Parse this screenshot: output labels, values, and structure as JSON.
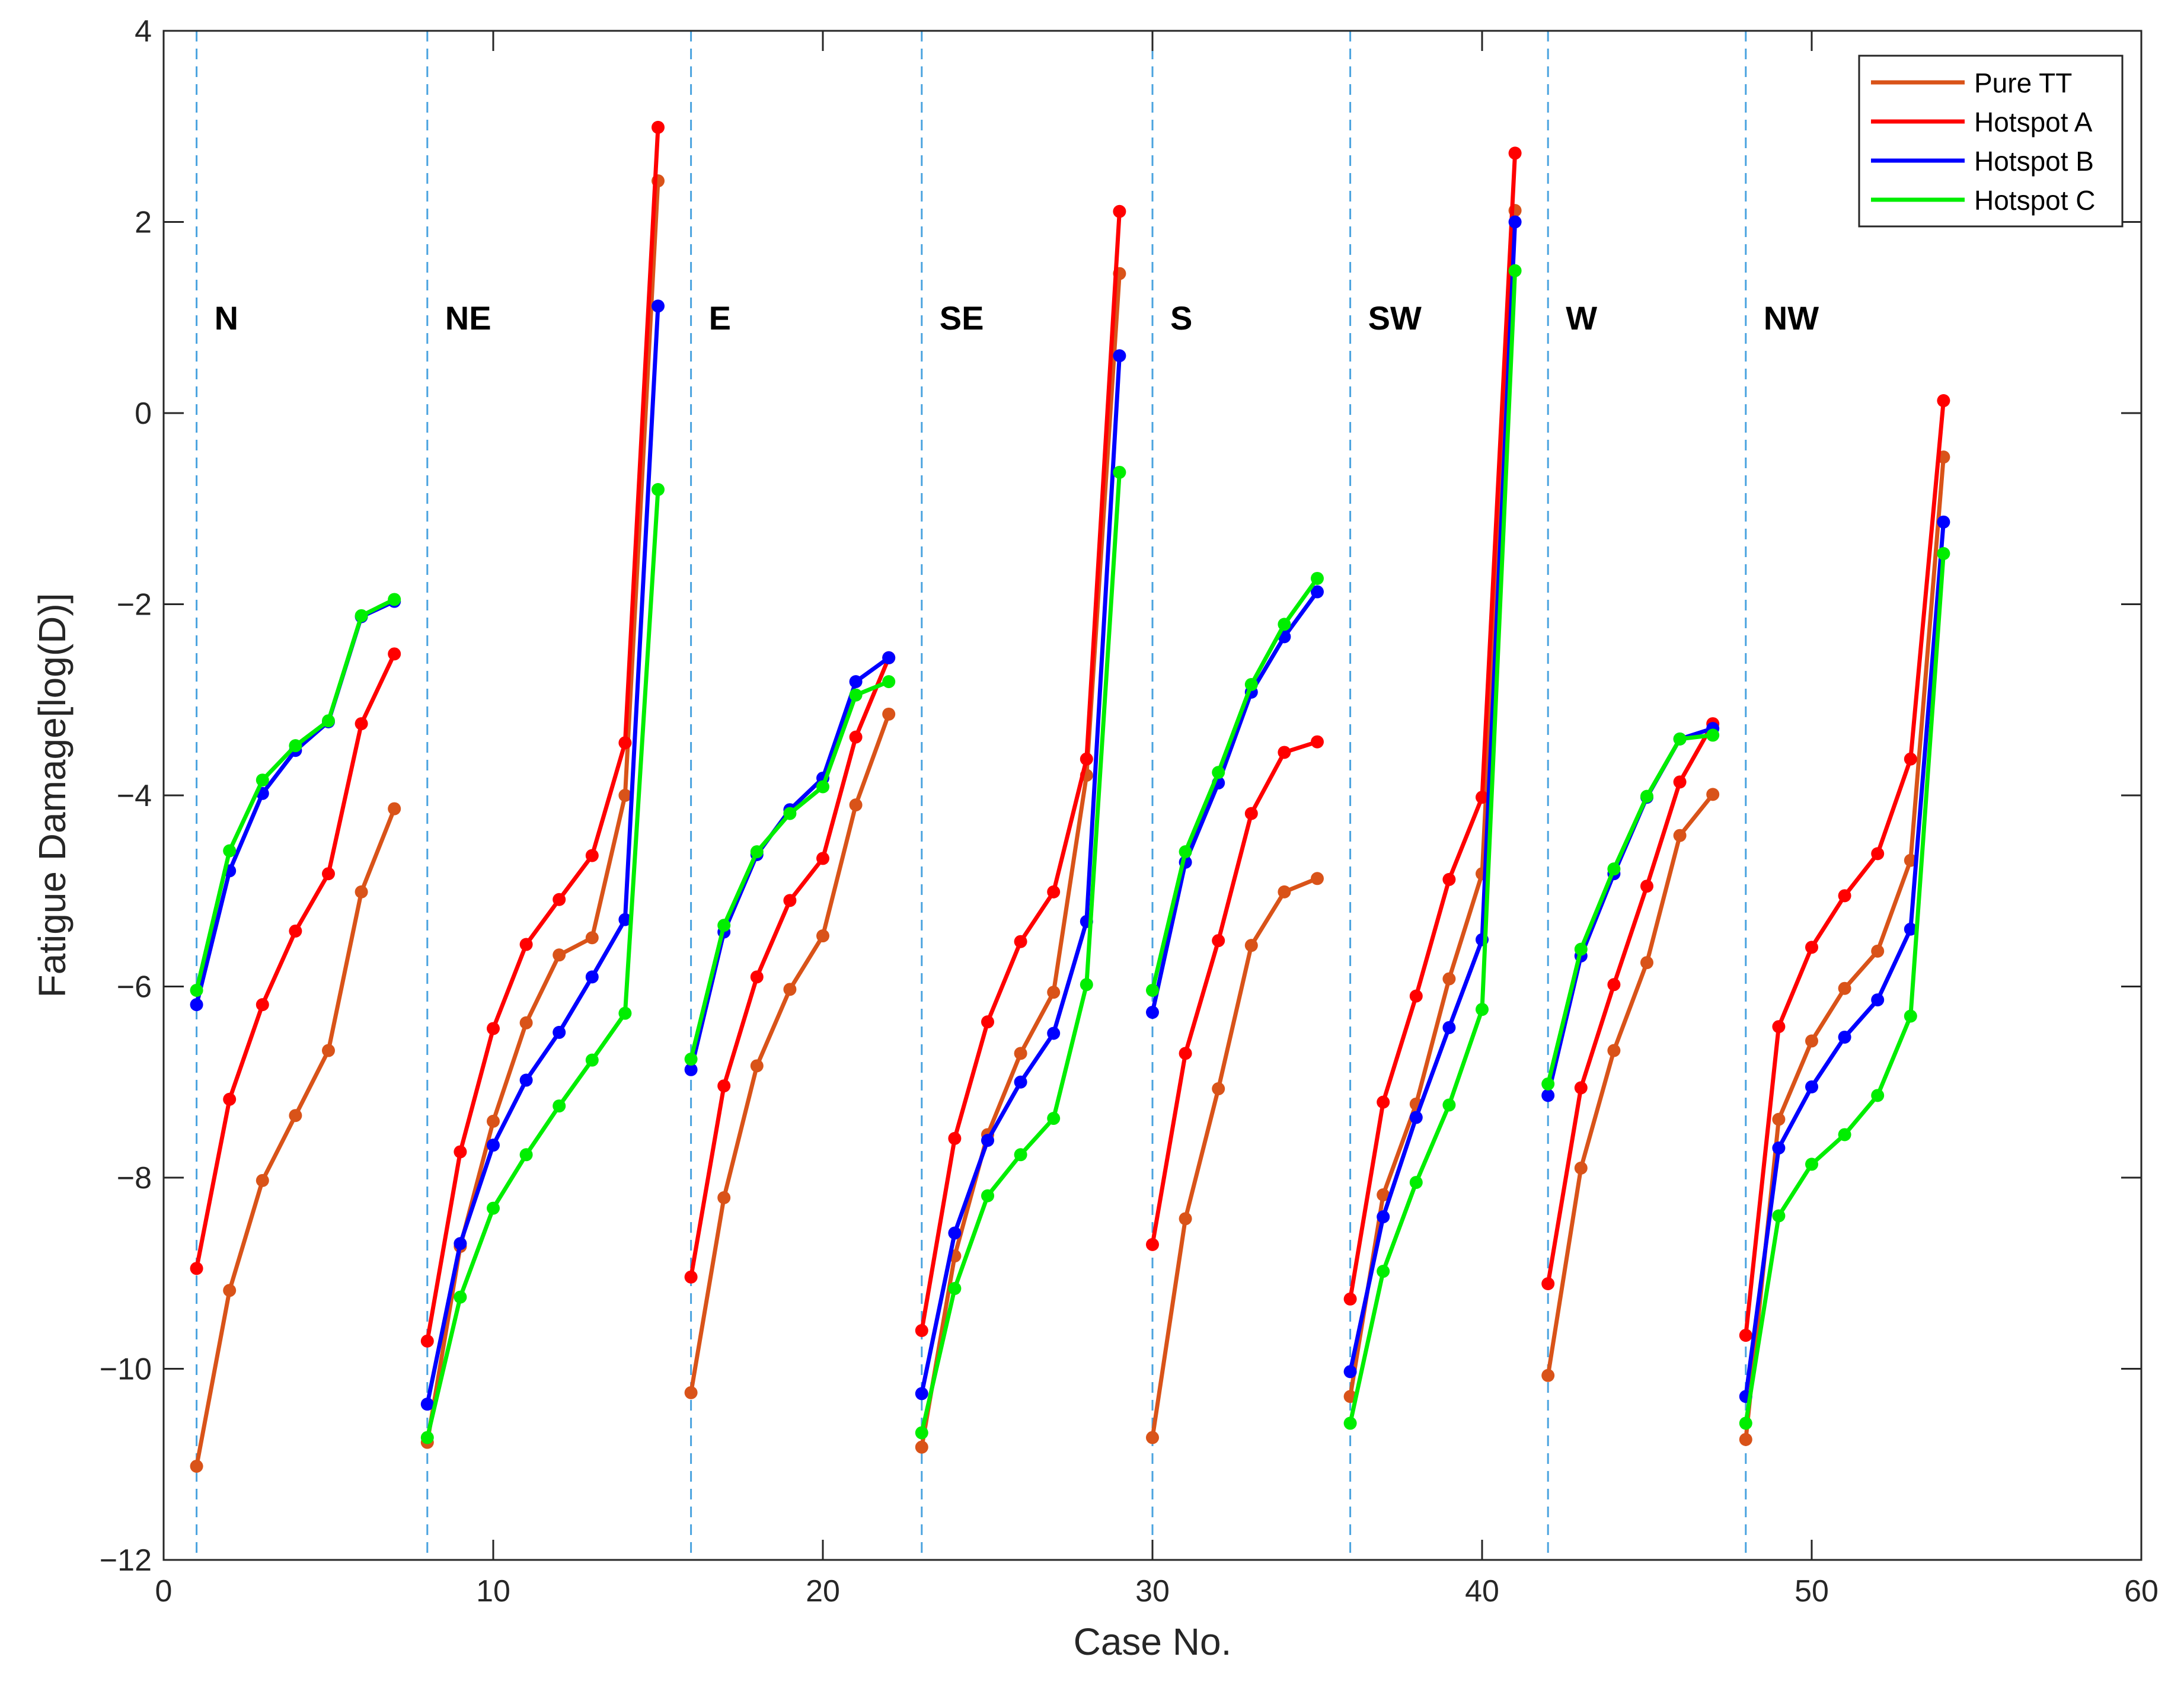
{
  "chart_data": {
    "type": "line",
    "title": "",
    "xlabel": "Case No.",
    "ylabel": "Fatigue Damage[log(D)]",
    "xlim": [
      0,
      60
    ],
    "ylim": [
      -12,
      4
    ],
    "xticks": [
      0,
      10,
      20,
      30,
      40,
      50,
      60
    ],
    "yticks": [
      -12,
      -10,
      -8,
      -6,
      -4,
      -2,
      0,
      2,
      4
    ],
    "grid": false,
    "legend_position": "top-right",
    "dividers": [
      1,
      8,
      16,
      23,
      30,
      36,
      42,
      48
    ],
    "regions": [
      {
        "label": "N",
        "x": 1,
        "y": 1
      },
      {
        "label": "NE",
        "x": 8,
        "y": 1
      },
      {
        "label": "E",
        "x": 16,
        "y": 1
      },
      {
        "label": "SE",
        "x": 23,
        "y": 1
      },
      {
        "label": "S",
        "x": 30,
        "y": 1
      },
      {
        "label": "SW",
        "x": 36,
        "y": 1
      },
      {
        "label": "W",
        "x": 42,
        "y": 1
      },
      {
        "label": "NW",
        "x": 48,
        "y": 1
      }
    ],
    "series": [
      {
        "name": "Pure TT",
        "color": "#d95319",
        "segments": [
          {
            "x": [
              1,
              2,
              3,
              4,
              5,
              6,
              7
            ],
            "y": [
              -11.02,
              -9.18,
              -8.03,
              -7.35,
              -6.67,
              -5.01,
              -4.14
            ]
          },
          {
            "x": [
              8,
              9,
              10,
              11,
              12,
              13,
              14,
              15
            ],
            "y": [
              -10.77,
              -8.72,
              -7.41,
              -6.38,
              -5.67,
              -5.49,
              -4.0,
              2.43
            ]
          },
          {
            "x": [
              16,
              17,
              18,
              19,
              20,
              21,
              22
            ],
            "y": [
              -10.25,
              -8.21,
              -6.83,
              -6.03,
              -5.47,
              -4.1,
              -3.15
            ]
          },
          {
            "x": [
              23,
              24,
              25,
              26,
              27,
              28,
              29
            ],
            "y": [
              -10.82,
              -8.82,
              -7.55,
              -6.7,
              -6.06,
              -3.79,
              1.46
            ]
          },
          {
            "x": [
              30,
              31,
              32,
              33,
              34,
              35
            ],
            "y": [
              -10.72,
              -8.43,
              -7.07,
              -5.57,
              -5.01,
              -4.87
            ]
          },
          {
            "x": [
              36,
              37,
              38,
              39,
              40,
              41
            ],
            "y": [
              -10.29,
              -8.18,
              -7.23,
              -5.92,
              -4.82,
              2.12
            ]
          },
          {
            "x": [
              42,
              43,
              44,
              45,
              46,
              47
            ],
            "y": [
              -10.07,
              -7.9,
              -6.67,
              -5.75,
              -4.42,
              -3.99
            ]
          },
          {
            "x": [
              48,
              49,
              50,
              51,
              52,
              53,
              54
            ],
            "y": [
              -10.74,
              -7.39,
              -6.57,
              -6.02,
              -5.63,
              -4.68,
              -0.46
            ]
          }
        ]
      },
      {
        "name": "Hotspot A",
        "color": "#ff0000",
        "segments": [
          {
            "x": [
              1,
              2,
              3,
              4,
              5,
              6,
              7
            ],
            "y": [
              -8.95,
              -7.18,
              -6.19,
              -5.42,
              -4.82,
              -3.25,
              -2.52
            ]
          },
          {
            "x": [
              8,
              9,
              10,
              11,
              12,
              13,
              14,
              15
            ],
            "y": [
              -9.71,
              -7.73,
              -6.44,
              -5.56,
              -5.09,
              -4.63,
              -3.45,
              2.99
            ]
          },
          {
            "x": [
              16,
              17,
              18,
              19,
              20,
              21,
              22
            ],
            "y": [
              -9.04,
              -7.04,
              -5.9,
              -5.1,
              -4.66,
              -3.39,
              -2.56
            ]
          },
          {
            "x": [
              23,
              24,
              25,
              26,
              27,
              28,
              29
            ],
            "y": [
              -9.6,
              -7.59,
              -6.37,
              -5.53,
              -5.01,
              -3.62,
              2.11
            ]
          },
          {
            "x": [
              30,
              31,
              32,
              33,
              34,
              35
            ],
            "y": [
              -8.7,
              -6.7,
              -5.52,
              -4.19,
              -3.55,
              -3.44
            ]
          },
          {
            "x": [
              36,
              37,
              38,
              39,
              40,
              41
            ],
            "y": [
              -9.27,
              -7.21,
              -6.1,
              -4.88,
              -4.02,
              2.72
            ]
          },
          {
            "x": [
              42,
              43,
              44,
              45,
              46,
              47
            ],
            "y": [
              -9.11,
              -7.06,
              -5.98,
              -4.95,
              -3.86,
              -3.25
            ]
          },
          {
            "x": [
              48,
              49,
              50,
              51,
              52,
              53,
              54
            ],
            "y": [
              -9.65,
              -6.42,
              -5.59,
              -5.05,
              -4.61,
              -3.62,
              0.13
            ]
          }
        ]
      },
      {
        "name": "Hotspot B",
        "color": "#0000ff",
        "segments": [
          {
            "x": [
              1,
              2,
              3,
              4,
              5,
              6,
              7
            ],
            "y": [
              -6.19,
              -4.79,
              -3.98,
              -3.53,
              -3.23,
              -2.13,
              -1.97
            ]
          },
          {
            "x": [
              8,
              9,
              10,
              11,
              12,
              13,
              14,
              15
            ],
            "y": [
              -10.37,
              -8.69,
              -7.66,
              -6.98,
              -6.48,
              -5.9,
              -5.3,
              1.12
            ]
          },
          {
            "x": [
              16,
              17,
              18,
              19,
              20,
              21,
              22
            ],
            "y": [
              -6.87,
              -5.43,
              -4.62,
              -4.15,
              -3.82,
              -2.81,
              -2.56
            ]
          },
          {
            "x": [
              23,
              24,
              25,
              26,
              27,
              28,
              29
            ],
            "y": [
              -10.26,
              -8.58,
              -7.61,
              -7.0,
              -6.49,
              -5.32,
              0.6
            ]
          },
          {
            "x": [
              30,
              31,
              32,
              33,
              34,
              35
            ],
            "y": [
              -6.27,
              -4.7,
              -3.87,
              -2.92,
              -2.34,
              -1.87
            ]
          },
          {
            "x": [
              36,
              37,
              38,
              39,
              40,
              41
            ],
            "y": [
              -10.03,
              -8.41,
              -7.37,
              -6.43,
              -5.51,
              2.0
            ]
          },
          {
            "x": [
              42,
              43,
              44,
              45,
              46,
              47
            ],
            "y": [
              -7.14,
              -5.68,
              -4.82,
              -4.02,
              -3.41,
              -3.3
            ]
          },
          {
            "x": [
              48,
              49,
              50,
              51,
              52,
              53,
              54
            ],
            "y": [
              -10.29,
              -7.69,
              -7.05,
              -6.53,
              -6.14,
              -5.4,
              -1.14
            ]
          }
        ]
      },
      {
        "name": "Hotspot C",
        "color": "#00ee00",
        "segments": [
          {
            "x": [
              1,
              2,
              3,
              4,
              5,
              6,
              7
            ],
            "y": [
              -6.04,
              -4.58,
              -3.84,
              -3.48,
              -3.22,
              -2.12,
              -1.95
            ]
          },
          {
            "x": [
              8,
              9,
              10,
              11,
              12,
              13,
              14,
              15
            ],
            "y": [
              -10.72,
              -9.25,
              -8.32,
              -7.76,
              -7.25,
              -6.77,
              -6.28,
              -0.8
            ]
          },
          {
            "x": [
              16,
              17,
              18,
              19,
              20,
              21,
              22
            ],
            "y": [
              -6.76,
              -5.36,
              -4.59,
              -4.19,
              -3.91,
              -2.95,
              -2.81
            ]
          },
          {
            "x": [
              23,
              24,
              25,
              26,
              27,
              28,
              29
            ],
            "y": [
              -10.67,
              -9.16,
              -8.19,
              -7.76,
              -7.38,
              -5.98,
              -0.62
            ]
          },
          {
            "x": [
              30,
              31,
              32,
              33,
              34,
              35
            ],
            "y": [
              -6.04,
              -4.59,
              -3.76,
              -2.84,
              -2.21,
              -1.73
            ]
          },
          {
            "x": [
              36,
              37,
              38,
              39,
              40,
              41
            ],
            "y": [
              -10.57,
              -8.98,
              -8.05,
              -7.24,
              -6.24,
              1.49
            ]
          },
          {
            "x": [
              42,
              43,
              44,
              45,
              46,
              47
            ],
            "y": [
              -7.02,
              -5.61,
              -4.77,
              -4.01,
              -3.41,
              -3.37
            ]
          },
          {
            "x": [
              48,
              49,
              50,
              51,
              52,
              53,
              54
            ],
            "y": [
              -10.57,
              -8.4,
              -7.86,
              -7.55,
              -7.14,
              -6.31,
              -1.47
            ]
          }
        ]
      }
    ]
  }
}
